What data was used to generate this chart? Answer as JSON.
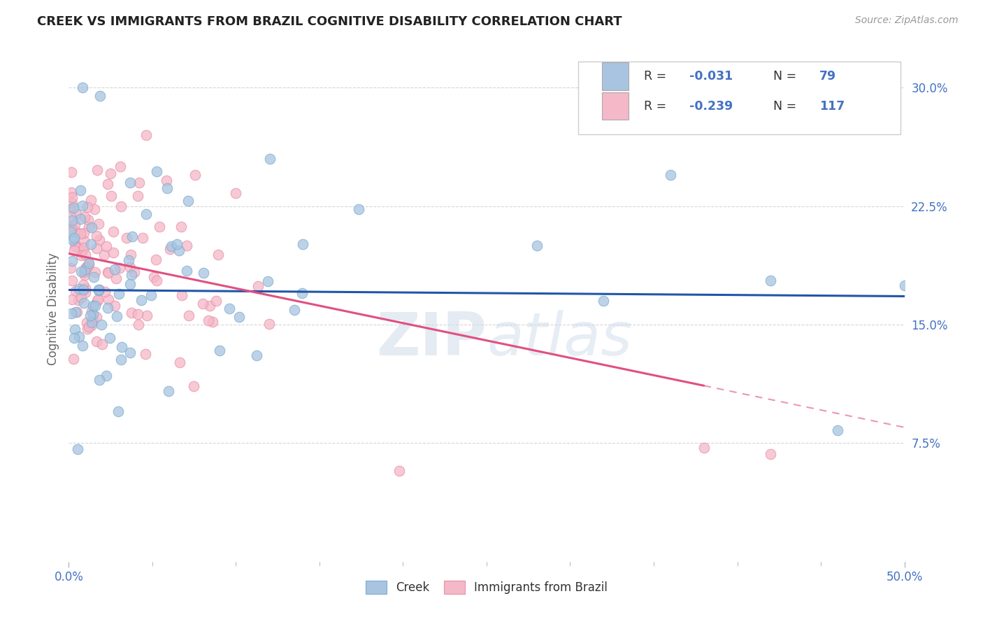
{
  "title": "CREEK VS IMMIGRANTS FROM BRAZIL COGNITIVE DISABILITY CORRELATION CHART",
  "source": "Source: ZipAtlas.com",
  "ylabel": "Cognitive Disability",
  "xlim": [
    0.0,
    0.5
  ],
  "ylim": [
    0.0,
    0.32
  ],
  "xticks_major": [
    0.0,
    0.5
  ],
  "xticks_minor": [
    0.05,
    0.1,
    0.15,
    0.2,
    0.25,
    0.3,
    0.35,
    0.4,
    0.45
  ],
  "xtick_major_labels": [
    "0.0%",
    "50.0%"
  ],
  "yticks_right": [
    0.075,
    0.15,
    0.225,
    0.3
  ],
  "ytick_labels_right": [
    "7.5%",
    "15.0%",
    "22.5%",
    "30.0%"
  ],
  "creek_color": "#a8c4e0",
  "creek_edge_color": "#7aaed0",
  "brazil_color": "#f4b8c8",
  "brazil_edge_color": "#e890a8",
  "creek_line_color": "#2255aa",
  "brazil_line_color": "#e05080",
  "label_color": "#4472c4",
  "creek_R": -0.031,
  "creek_N": 79,
  "brazil_R": -0.239,
  "brazil_N": 117,
  "watermark": "ZIPatlas",
  "background_color": "#ffffff",
  "grid_color": "#cccccc",
  "creek_intercept": 0.172,
  "creek_slope": -0.008,
  "brazil_intercept": 0.195,
  "brazil_slope": -0.22
}
